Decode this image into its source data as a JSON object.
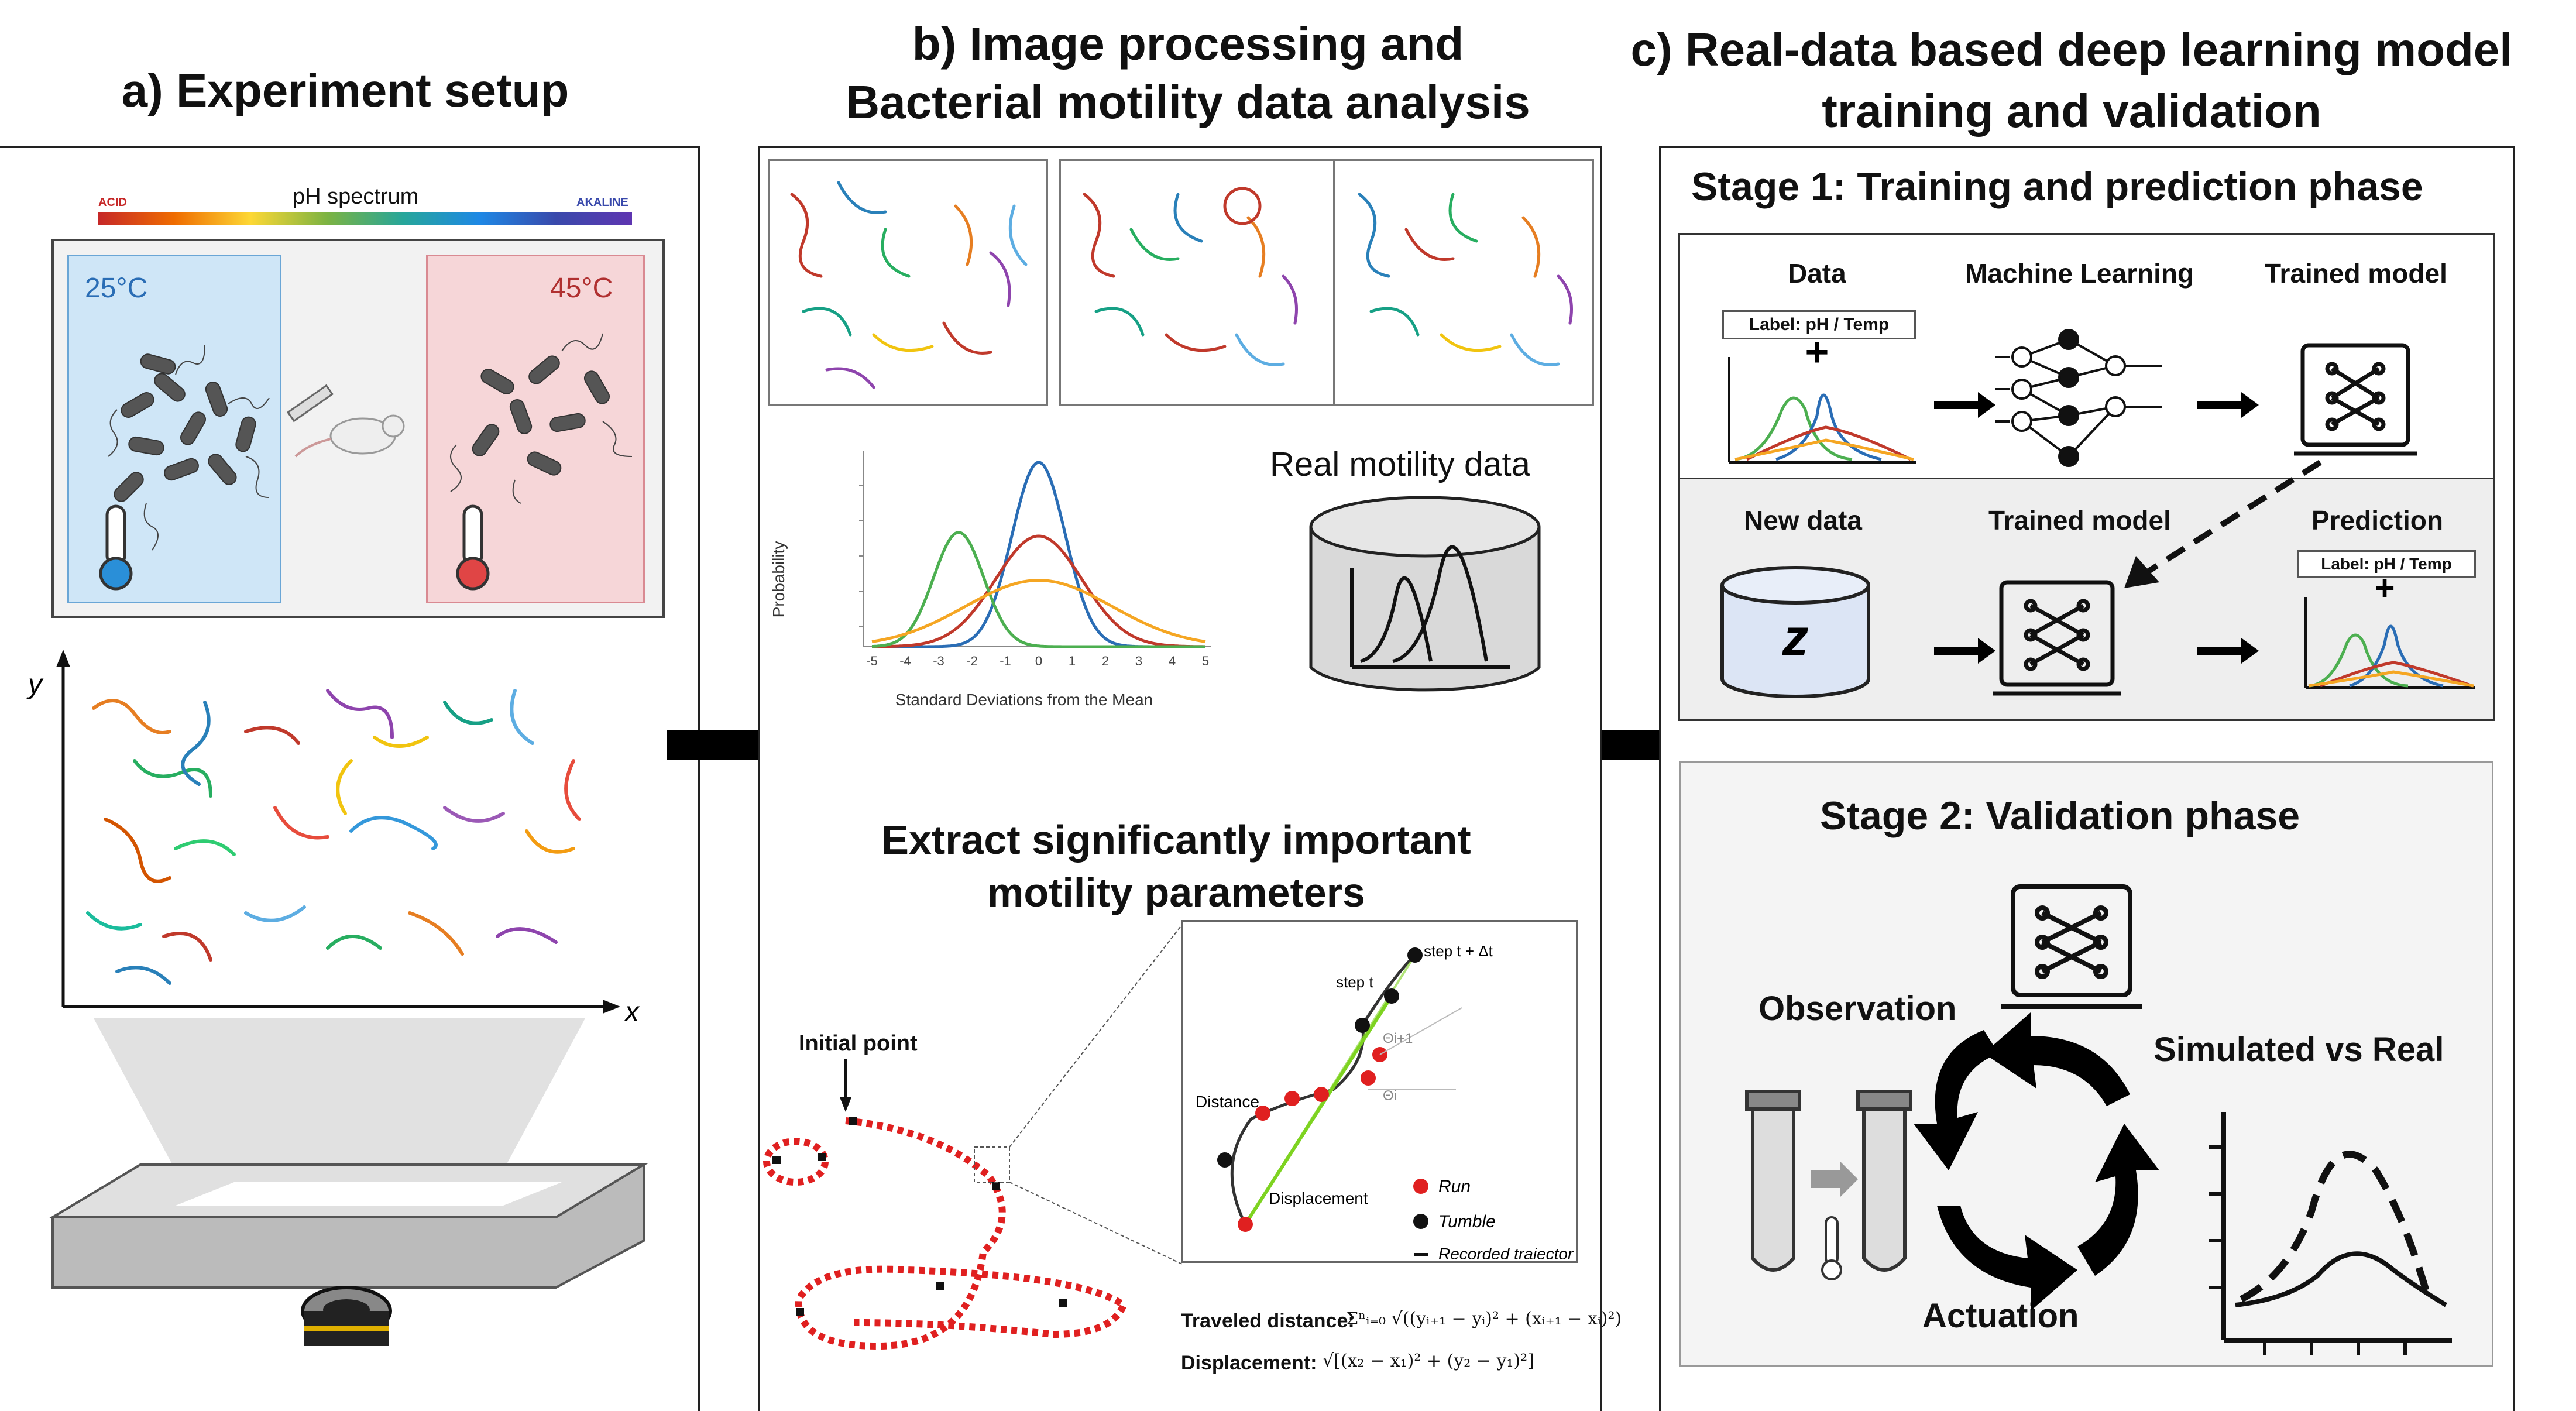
{
  "titles": {
    "a": "a) Experiment setup",
    "b_line1": "b) Image processing and",
    "b_line2": "Bacterial motility data analysis",
    "c_line1": "c) Real-data based deep learning model",
    "c_line2": "training and validation"
  },
  "panel_a": {
    "ph_label": "pH spectrum",
    "acid": "ACID",
    "alkaline": "AKALINE",
    "temp_cold": "25°C",
    "temp_hot": "45°C",
    "y_axis": "y",
    "x_axis": "x"
  },
  "panel_b": {
    "chart_title": "Real motility data",
    "chart_ylabel": "Probability",
    "chart_xlabel": "Standard Deviations from the Mean",
    "extract_line1": "Extract significantly important",
    "extract_line2": "motility parameters",
    "initial_point": "Initial point",
    "step_t": "step t",
    "step_t_dt": "step t + Δt",
    "theta_i1": "Θi+1",
    "theta_i": "Θi",
    "distance": "Distance",
    "displacement": "Displacement",
    "legend_run": "Run",
    "legend_tumble": "Tumble",
    "legend_recorded": "Recorded trajectory",
    "traveled_label": "Traveled distance:",
    "traveled_formula": "Σⁿᵢ₌₀ √((yᵢ₊₁ − yᵢ)² + (xᵢ₊₁ − xᵢ)²)",
    "displacement_label": "Displacement:",
    "displacement_formula": "√[(x₂ − x₁)² + (y₂ − y₁)²]"
  },
  "chart_data": {
    "type": "line",
    "ylabel": "Probability",
    "xlabel": "Standard Deviations from the Mean",
    "xlim": [
      -5,
      5
    ],
    "x_ticks": [
      "-5",
      "-4",
      "-3",
      "-2",
      "-1",
      "0",
      "1",
      "2",
      "3",
      "4",
      "5"
    ],
    "series": [
      {
        "color": "#2a6db5",
        "mean": 0,
        "sd": 0.8,
        "peak": 1.0
      },
      {
        "color": "#c0392b",
        "mean": 0,
        "sd": 1.3,
        "peak": 0.6
      },
      {
        "color": "#4caf50",
        "mean": -2.4,
        "sd": 0.75,
        "peak": 0.62
      },
      {
        "color": "#f5a623",
        "mean": 0,
        "sd": 2.2,
        "peak": 0.36
      }
    ]
  },
  "panel_c": {
    "stage1": "Stage 1: Training and prediction phase",
    "data": "Data",
    "machine_learning": "Machine Learning",
    "trained_model": "Trained model",
    "label_ph_temp": "Label: pH / Temp",
    "new_data": "New data",
    "trained_model_2": "Trained model",
    "prediction": "Prediction",
    "label_ph_temp_2": "Label: pH / Temp",
    "z_letter": "z",
    "stage2": "Stage 2: Validation phase",
    "observation": "Observation",
    "simulated_vs_real": "Simulated vs Real",
    "actuation": "Actuation"
  },
  "colors": {
    "cold_box": "#cfe6f7",
    "hot_box": "#f6d6d8",
    "red_track": "#e02020",
    "dark": "#111111"
  }
}
